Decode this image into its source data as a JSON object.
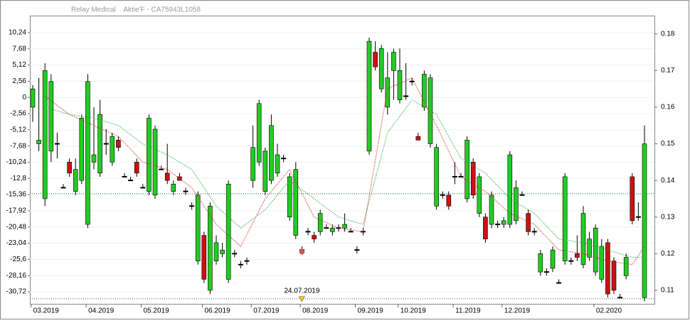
{
  "chart_data": {
    "type": "candlestick",
    "title": "Relay Medical    Aktie'F - CA75943L1058",
    "categories": [
      null,
      null,
      null,
      null,
      null,
      null,
      null,
      null,
      null,
      null,
      null,
      null,
      null,
      null,
      null,
      null,
      null,
      null,
      null,
      null,
      null,
      null,
      null,
      null,
      null,
      null,
      null,
      null,
      null,
      null,
      null,
      null,
      null,
      null,
      null,
      null,
      null,
      null,
      null,
      null,
      null,
      null,
      null,
      null,
      null,
      null,
      null,
      null,
      null,
      null,
      null,
      null,
      null,
      null,
      null,
      null,
      null,
      null,
      null,
      null,
      null,
      null,
      null,
      null,
      null,
      null,
      null,
      null,
      null,
      null,
      null,
      null,
      null,
      null,
      null,
      null,
      null,
      null,
      null,
      null,
      null,
      null,
      null,
      null,
      null,
      null,
      null,
      null,
      null,
      null,
      null,
      null,
      null,
      null,
      null,
      null,
      null,
      null,
      null,
      null,
      null
    ],
    "ohlc": [
      [
        0.16,
        0.166,
        0.156,
        0.165
      ],
      [
        0.15,
        0.168,
        0.148,
        0.151
      ],
      [
        0.135,
        0.172,
        0.133,
        0.17
      ],
      [
        0.148,
        0.169,
        0.145,
        0.167
      ],
      [
        0.15,
        0.153,
        0.146,
        0.15
      ],
      [
        0.138,
        0.139,
        0.138,
        0.138
      ],
      [
        0.145,
        0.146,
        0.141,
        0.142
      ],
      [
        0.137,
        0.146,
        0.136,
        0.143
      ],
      [
        0.14,
        0.158,
        0.139,
        0.157
      ],
      [
        0.128,
        0.169,
        0.127,
        0.167
      ],
      [
        0.145,
        0.16,
        0.143,
        0.147
      ],
      [
        0.142,
        0.162,
        0.141,
        0.158
      ],
      [
        0.15,
        0.154,
        0.147,
        0.15
      ],
      [
        0.145,
        0.153,
        0.144,
        0.152
      ],
      [
        0.151,
        0.152,
        0.148,
        0.149
      ],
      [
        0.141,
        0.142,
        0.141,
        0.141
      ],
      [
        0.14,
        0.141,
        0.14,
        0.14
      ],
      [
        0.145,
        0.146,
        0.141,
        0.142
      ],
      [
        0.138,
        0.139,
        0.138,
        0.138
      ],
      [
        0.137,
        0.158,
        0.136,
        0.157
      ],
      [
        0.136,
        0.155,
        0.135,
        0.154
      ],
      [
        0.143,
        0.144,
        0.143,
        0.143
      ],
      [
        0.142,
        0.15,
        0.139,
        0.14
      ],
      [
        0.137,
        0.14,
        0.136,
        0.139
      ],
      [
        0.141,
        0.142,
        0.14,
        0.14
      ],
      [
        0.137,
        0.138,
        0.136,
        0.137
      ],
      [
        0.133,
        0.134,
        0.132,
        0.133
      ],
      [
        0.118,
        0.137,
        0.117,
        0.136
      ],
      [
        0.125,
        0.126,
        0.112,
        0.113
      ],
      [
        0.11,
        0.134,
        0.109,
        0.133
      ],
      [
        0.118,
        0.125,
        0.117,
        0.123
      ],
      [
        0.12,
        0.123,
        0.119,
        0.121
      ],
      [
        0.113,
        0.14,
        0.112,
        0.139
      ],
      [
        0.12,
        0.121,
        0.119,
        0.12
      ],
      [
        0.117,
        0.118,
        0.116,
        0.117
      ],
      [
        0.118,
        0.119,
        0.117,
        0.118
      ],
      [
        0.14,
        0.155,
        0.138,
        0.149
      ],
      [
        0.145,
        0.162,
        0.144,
        0.161
      ],
      [
        0.137,
        0.149,
        0.136,
        0.148
      ],
      [
        0.14,
        0.158,
        0.139,
        0.155
      ],
      [
        0.142,
        0.15,
        0.141,
        0.147
      ],
      [
        0.146,
        0.147,
        0.145,
        0.146
      ],
      [
        0.13,
        0.142,
        0.129,
        0.141
      ],
      [
        0.125,
        0.145,
        0.124,
        0.143
      ],
      [
        0.121,
        0.122,
        0.121,
        0.121
      ],
      [
        0.126,
        0.127,
        0.125,
        0.126
      ],
      [
        0.125,
        0.126,
        0.123,
        0.124
      ],
      [
        0.126,
        0.132,
        0.125,
        0.131
      ],
      [
        0.127,
        0.128,
        0.127,
        0.127
      ],
      [
        0.126,
        0.128,
        0.125,
        0.127
      ],
      [
        0.127,
        0.128,
        0.126,
        0.127
      ],
      [
        0.127,
        0.131,
        0.126,
        0.128
      ],
      [
        0.126,
        0.127,
        0.126,
        0.126
      ],
      [
        0.121,
        0.122,
        0.12,
        0.121
      ],
      [
        0.126,
        0.127,
        0.125,
        0.126
      ],
      [
        0.148,
        0.179,
        0.147,
        0.178
      ],
      [
        0.175,
        0.178,
        0.17,
        0.171
      ],
      [
        0.165,
        0.177,
        0.164,
        0.176
      ],
      [
        0.16,
        0.175,
        0.158,
        0.168
      ],
      [
        0.17,
        0.176,
        0.162,
        0.175
      ],
      [
        0.162,
        0.176,
        0.161,
        0.17
      ],
      [
        0.163,
        0.172,
        0.162,
        0.163
      ],
      [
        0.167,
        0.168,
        0.166,
        0.167
      ],
      [
        0.152,
        0.153,
        0.151,
        0.151
      ],
      [
        0.16,
        0.17,
        0.159,
        0.169
      ],
      [
        0.15,
        0.169,
        0.149,
        0.168
      ],
      [
        0.133,
        0.15,
        0.132,
        0.149
      ],
      [
        0.136,
        0.137,
        0.135,
        0.136
      ],
      [
        0.136,
        0.137,
        0.132,
        0.133
      ],
      [
        0.141,
        0.145,
        0.139,
        0.141
      ],
      [
        0.141,
        0.142,
        0.141,
        0.141
      ],
      [
        0.135,
        0.152,
        0.134,
        0.151
      ],
      [
        0.145,
        0.146,
        0.135,
        0.136
      ],
      [
        0.131,
        0.142,
        0.13,
        0.141
      ],
      [
        0.13,
        0.131,
        0.123,
        0.124
      ],
      [
        0.128,
        0.137,
        0.127,
        0.136
      ],
      [
        0.128,
        0.129,
        0.127,
        0.128
      ],
      [
        0.128,
        0.13,
        0.127,
        0.129
      ],
      [
        0.128,
        0.148,
        0.127,
        0.147
      ],
      [
        0.129,
        0.14,
        0.128,
        0.138
      ],
      [
        0.136,
        0.137,
        0.136,
        0.136
      ],
      [
        0.131,
        0.132,
        0.125,
        0.126
      ],
      [
        0.126,
        0.127,
        0.125,
        0.126
      ],
      [
        0.115,
        0.121,
        0.114,
        0.12
      ],
      [
        0.115,
        0.116,
        0.114,
        0.115
      ],
      [
        0.116,
        0.122,
        0.115,
        0.121
      ],
      [
        0.112,
        0.113,
        0.112,
        0.112
      ],
      [
        0.118,
        0.142,
        0.117,
        0.141
      ],
      [
        0.118,
        0.119,
        0.117,
        0.118
      ],
      [
        0.12,
        0.125,
        0.118,
        0.119
      ],
      [
        0.117,
        0.133,
        0.116,
        0.131
      ],
      [
        0.119,
        0.126,
        0.118,
        0.124
      ],
      [
        0.115,
        0.128,
        0.114,
        0.127
      ],
      [
        0.113,
        0.124,
        0.112,
        0.122
      ],
      [
        0.123,
        0.124,
        0.108,
        0.109
      ],
      [
        0.118,
        0.119,
        0.109,
        0.11
      ],
      [
        0.108,
        0.109,
        0.108,
        0.108
      ],
      [
        0.114,
        0.12,
        0.113,
        0.119
      ],
      [
        0.141,
        0.142,
        0.128,
        0.129
      ],
      [
        0.13,
        0.134,
        0.129,
        0.13
      ],
      [
        0.108,
        0.155,
        0.107,
        0.15
      ]
    ],
    "up_color": "#22cc22",
    "down_color": "#cc1111",
    "lines": [
      {
        "color": "#dd2222",
        "x": [
          2,
          6,
          10,
          14,
          18,
          22,
          26,
          30,
          34,
          38,
          42,
          46,
          50,
          54,
          58,
          62,
          66,
          70,
          74,
          78,
          82,
          86,
          90,
          94,
          98,
          100
        ],
        "values": [
          0.163,
          0.158,
          0.155,
          0.152,
          0.145,
          0.143,
          0.138,
          0.128,
          0.122,
          0.135,
          0.143,
          0.13,
          0.127,
          0.126,
          0.165,
          0.168,
          0.155,
          0.141,
          0.137,
          0.131,
          0.128,
          0.121,
          0.12,
          0.118,
          0.117,
          0.122
        ]
      },
      {
        "color": "#22aa44",
        "x": [
          2,
          6,
          10,
          14,
          18,
          22,
          26,
          30,
          34,
          38,
          42,
          46,
          50,
          54,
          58,
          62,
          66,
          70,
          74,
          78,
          82,
          86,
          90,
          94,
          98,
          100
        ],
        "values": [
          0.16,
          0.158,
          0.157,
          0.155,
          0.15,
          0.147,
          0.143,
          0.133,
          0.127,
          0.132,
          0.14,
          0.135,
          0.13,
          0.128,
          0.153,
          0.162,
          0.158,
          0.146,
          0.142,
          0.135,
          0.131,
          0.124,
          0.123,
          0.121,
          0.119,
          0.119
        ]
      }
    ],
    "ref_lines": [
      {
        "value": 0.1364,
        "color": "#2a7a3a"
      },
      {
        "value": 0.1077,
        "color": "#555555"
      }
    ],
    "annotation": {
      "label": "24.07.2019",
      "x": 44,
      "value": 0.1077,
      "color": "#e8d020"
    },
    "marker": {
      "x": 44,
      "value": 0.1205,
      "color": "#e05050"
    },
    "xticks": [
      {
        "value": 0,
        "label": "03.2019"
      },
      {
        "value": 9,
        "label": "04.2019"
      },
      {
        "value": 18,
        "label": "05.2019"
      },
      {
        "value": 28,
        "label": "06.2019"
      },
      {
        "value": 36,
        "label": "07.2019"
      },
      {
        "value": 44,
        "label": "08.2019"
      },
      {
        "value": 53,
        "label": "09.2019"
      },
      {
        "value": 60,
        "label": "10.2019"
      },
      {
        "value": 69,
        "label": "11.2019"
      },
      {
        "value": 77,
        "label": "12.2019"
      },
      {
        "value": 92,
        "label": "02.2020"
      }
    ],
    "ylim": [
      -32.63,
      12.93
    ],
    "yticks": [
      {
        "value": 10.24,
        "label": "10,24"
      },
      {
        "value": 7.68,
        "label": "7,68"
      },
      {
        "value": 5.12,
        "label": "5,12"
      },
      {
        "value": 2.56,
        "label": "2,56"
      },
      0,
      {
        "value": -2.56,
        "label": "-2,56"
      },
      {
        "value": -5.12,
        "label": "-5,12"
      },
      {
        "value": -7.68,
        "label": "-7,68"
      },
      {
        "value": -10.24,
        "label": "-10,24"
      },
      {
        "value": -12.8,
        "label": "-12,8"
      },
      {
        "value": -15.36,
        "label": "-15,36"
      },
      {
        "value": -17.92,
        "label": "-17,92"
      },
      {
        "value": -20.48,
        "label": "-20,48"
      },
      {
        "value": -23.04,
        "label": "-23,04"
      },
      {
        "value": -25.6,
        "label": "-25,6"
      },
      {
        "value": -28.16,
        "label": "-28,16"
      },
      {
        "value": -30.72,
        "label": "-30,72"
      }
    ],
    "y2lim": [
      0.1063,
      0.185
    ],
    "y2ticks": [
      0.11,
      0.12,
      0.13,
      0.14,
      0.15,
      0.16,
      0.17,
      0.18
    ],
    "grid": true
  }
}
